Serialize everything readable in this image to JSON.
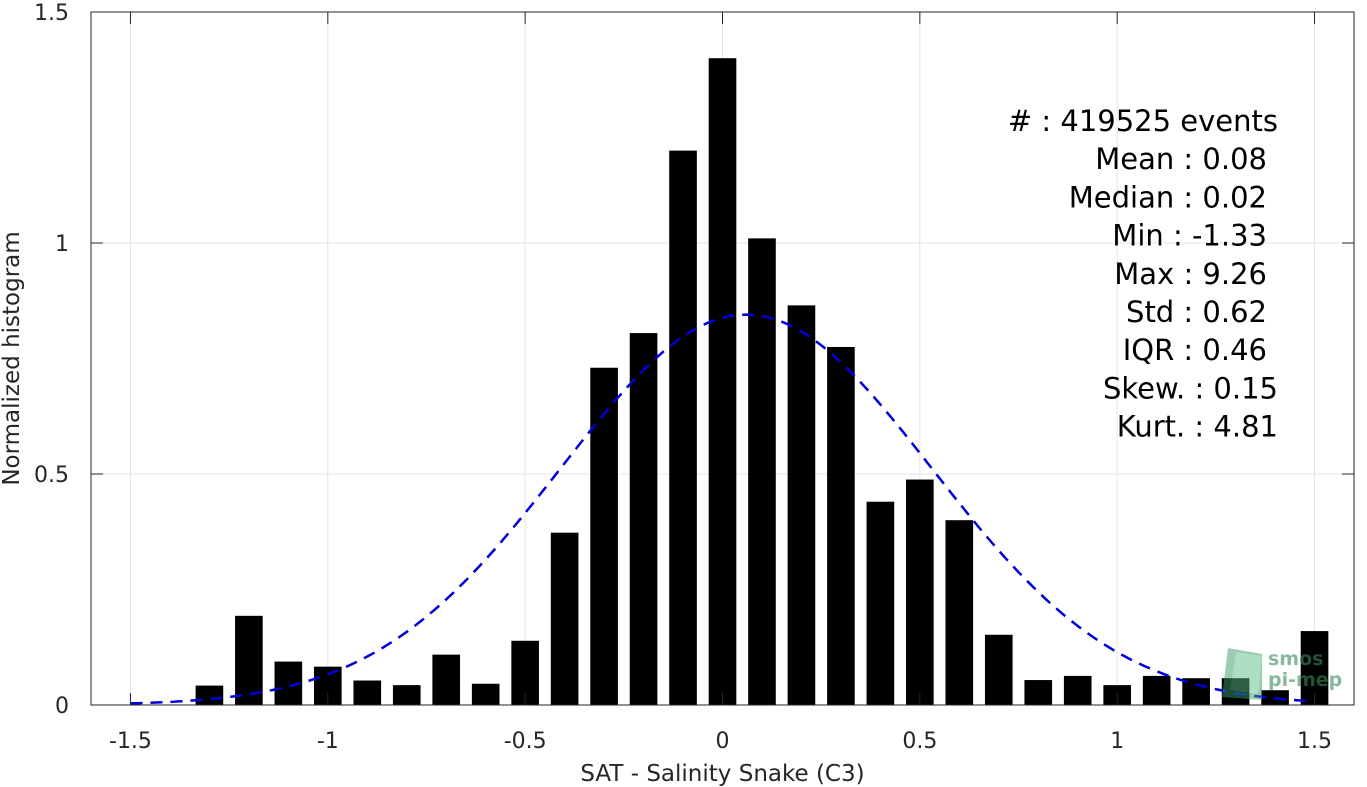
{
  "chart_data": {
    "type": "bar",
    "xlabel": "SAT - Salinity Snake (C3)",
    "ylabel": "Normalized histogram",
    "xlim": [
      -1.6,
      1.6
    ],
    "ylim": [
      0,
      1.5
    ],
    "x_ticks": [
      -1.5,
      -1,
      -0.5,
      0,
      0.5,
      1,
      1.5
    ],
    "x_tick_labels": [
      "-1.5",
      "-1",
      "-0.5",
      "0",
      "0.5",
      "1",
      "1.5"
    ],
    "y_ticks": [
      0,
      0.5,
      1,
      1.5
    ],
    "y_tick_labels": [
      "0",
      "0.5",
      "1",
      "1.5"
    ],
    "grid": true,
    "bar_width": 0.07,
    "bars": {
      "x": [
        -1.3,
        -1.2,
        -1.1,
        -1.0,
        -0.9,
        -0.8,
        -0.7,
        -0.6,
        -0.5,
        -0.4,
        -0.3,
        -0.2,
        -0.1,
        0.0,
        0.1,
        0.2,
        0.3,
        0.4,
        0.5,
        0.6,
        0.7,
        0.8,
        0.9,
        1.0,
        1.1,
        1.2,
        1.3,
        1.4,
        1.5
      ],
      "values": [
        0.042,
        0.193,
        0.094,
        0.083,
        0.053,
        0.043,
        0.109,
        0.046,
        0.139,
        0.373,
        0.73,
        0.805,
        1.2,
        1.4,
        1.01,
        0.865,
        0.775,
        0.44,
        0.488,
        0.4,
        0.152,
        0.054,
        0.063,
        0.043,
        0.063,
        0.058,
        0.058,
        0.032,
        0.16
      ],
      "color": "#000000"
    },
    "fit_curve": {
      "style": "dashed",
      "color": "#0000dd",
      "mean": 0.06,
      "std": 0.47,
      "x_range": [
        -1.5,
        1.5
      ]
    },
    "stats": [
      "#  : 419525 events",
      "Mean : 0.08",
      "Median : 0.02",
      "Min : -1.33",
      "Max : 9.26",
      "Std : 0.62",
      "IQR : 0.46",
      "Skew. : 0.15",
      "Kurt. : 4.81"
    ]
  },
  "logo": {
    "line1": "smos",
    "line2": "pi-mep"
  }
}
